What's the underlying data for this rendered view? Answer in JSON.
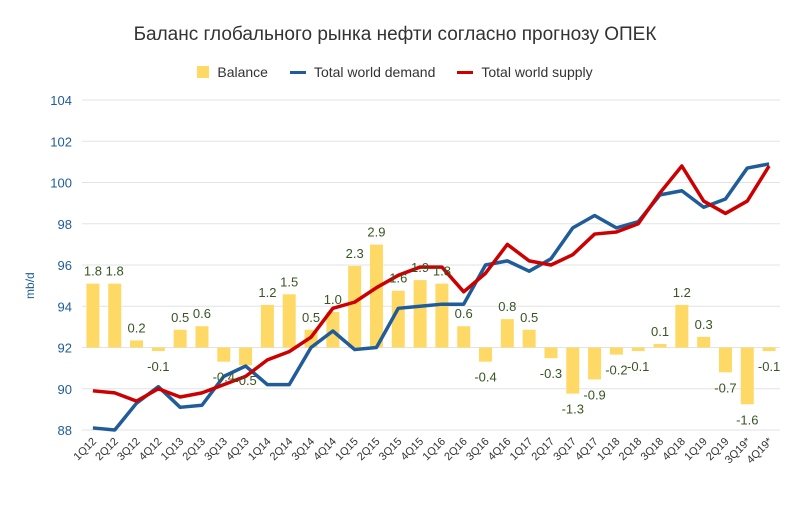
{
  "chart_data": {
    "type": "bar+line",
    "title": "Баланс глобального рынка нефти согласно прогнозу ОПЕК",
    "ylabel": "mb/d",
    "ylim": [
      88,
      104
    ],
    "yticks": [
      "88",
      "90",
      "92",
      "94",
      "96",
      "98",
      "100",
      "102",
      "104"
    ],
    "balance_baseline": 92,
    "categories": [
      "1Q12",
      "2Q12",
      "3Q12",
      "4Q12",
      "1Q13",
      "2Q13",
      "3Q13",
      "4Q13",
      "1Q14",
      "2Q14",
      "3Q14",
      "4Q14",
      "1Q15",
      "2Q15",
      "3Q15",
      "4Q15",
      "1Q16",
      "2Q16",
      "3Q16",
      "4Q16",
      "1Q17",
      "2Q17",
      "3Q17",
      "4Q17",
      "1Q18",
      "2Q18",
      "3Q18",
      "4Q18",
      "1Q19",
      "2Q19",
      "3Q19*",
      "4Q19*"
    ],
    "series": [
      {
        "name": "Balance",
        "type": "bar",
        "color": "#FFD966",
        "values": [
          1.8,
          1.8,
          0.2,
          -0.1,
          0.5,
          0.6,
          -0.4,
          -0.5,
          1.2,
          1.5,
          0.5,
          1.0,
          2.3,
          2.9,
          1.6,
          1.9,
          1.8,
          0.6,
          -0.4,
          0.8,
          0.5,
          -0.3,
          -1.3,
          -0.9,
          -0.2,
          -0.1,
          0.1,
          1.2,
          0.3,
          -0.7,
          -1.6,
          -0.1
        ]
      },
      {
        "name": "Total world demand",
        "type": "line",
        "color": "#1F5C99",
        "values": [
          88.1,
          88.0,
          89.3,
          90.1,
          89.1,
          89.2,
          90.6,
          91.1,
          90.2,
          90.2,
          92.0,
          92.8,
          91.9,
          92.0,
          93.9,
          94.0,
          94.1,
          94.1,
          96.0,
          96.2,
          95.7,
          96.3,
          97.8,
          98.4,
          97.8,
          98.1,
          99.4,
          99.6,
          98.8,
          99.2,
          100.7,
          100.9
        ]
      },
      {
        "name": "Total world supply",
        "type": "line",
        "color": "#CC0000",
        "values": [
          89.9,
          89.8,
          89.4,
          90.0,
          89.6,
          89.8,
          90.2,
          90.6,
          91.4,
          91.8,
          92.5,
          93.9,
          94.2,
          94.9,
          95.5,
          95.9,
          95.9,
          94.7,
          95.6,
          97.0,
          96.2,
          96.0,
          96.5,
          97.5,
          97.6,
          98.0,
          99.5,
          100.8,
          99.1,
          98.5,
          99.1,
          100.8
        ]
      }
    ],
    "legend": "top",
    "grid": true
  }
}
